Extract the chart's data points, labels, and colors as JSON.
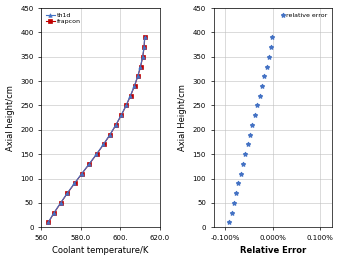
{
  "axial_heights": [
    10,
    30,
    50,
    70,
    90,
    110,
    130,
    150,
    170,
    190,
    210,
    230,
    250,
    270,
    290,
    310,
    330,
    350,
    370,
    390
  ],
  "th1d_temps": [
    563.5,
    566.5,
    569.8,
    573.2,
    576.8,
    580.5,
    584.3,
    588.0,
    591.5,
    594.8,
    597.8,
    600.5,
    603.0,
    605.2,
    607.2,
    608.9,
    610.3,
    611.4,
    612.1,
    612.4
  ],
  "frapcon_temps": [
    563.6,
    566.6,
    569.9,
    573.3,
    576.9,
    580.6,
    584.4,
    588.1,
    591.6,
    594.9,
    597.9,
    600.6,
    603.1,
    605.3,
    607.3,
    609.0,
    610.4,
    611.5,
    612.2,
    612.5
  ],
  "relative_errors": [
    -0.00093,
    -0.00087,
    -0.00082,
    -0.00077,
    -0.00073,
    -0.00068,
    -0.00063,
    -0.00058,
    -0.00053,
    -0.00048,
    -0.00043,
    -0.00038,
    -0.00033,
    -0.00028,
    -0.00023,
    -0.00018,
    -0.00013,
    -8e-05,
    -4e-05,
    -1e-05
  ],
  "left_xlim": [
    560,
    620
  ],
  "right_xlim": [
    -0.00125,
    0.00125
  ],
  "ylim": [
    0,
    450
  ],
  "yticks": [
    0,
    50,
    100,
    150,
    200,
    250,
    300,
    350,
    400,
    450
  ],
  "left_xticks": [
    560,
    580,
    600,
    620
  ],
  "left_xtick_labels": [
    "560",
    "580.0",
    "600.",
    "620.0"
  ],
  "right_xticks": [
    -0.001,
    0.0,
    0.001
  ],
  "right_xtick_labels": [
    "-0.100%",
    "0.000%",
    "0.100%"
  ],
  "left_xlabel": "Coolant temperature/K",
  "right_xlabel": "Relative Error",
  "left_ylabel": "Axial height/cm",
  "right_ylabel": "Axial Height/cm",
  "th1d_color": "#4472C4",
  "frapcon_color": "#C00000",
  "error_color": "#4472C4",
  "legend_th1d": "th1d",
  "legend_frapcon": "frapcon",
  "legend_error": "relative error",
  "bg_color": "#FFFFFF",
  "grid_color": "#C0C0C0"
}
